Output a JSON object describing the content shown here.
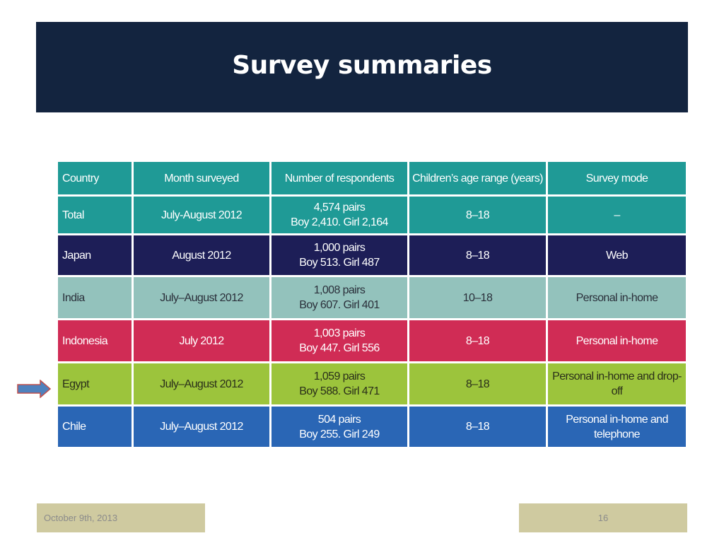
{
  "slide": {
    "title": "Survey summaries",
    "footer_date": "October 9th, 2013",
    "page_number": "16"
  },
  "table": {
    "headers": [
      "Country",
      "Month surveyed",
      "Number of respondents",
      "Children’s age range (years)",
      "Survey mode"
    ],
    "rows": [
      {
        "country": "Total",
        "month": "July-August 2012",
        "respondents_line1": "4,574 pairs",
        "respondents_line2": "Boy 2,410. Girl 2,164",
        "age_range": "8–18",
        "mode": "–",
        "color": "#1f9a96"
      },
      {
        "country": "Japan",
        "month": "August 2012",
        "respondents_line1": "1,000 pairs",
        "respondents_line2": "Boy 513. Girl 487",
        "age_range": "8–18",
        "mode": "Web",
        "color": "#1d1e57"
      },
      {
        "country": "India",
        "month": "July–August 2012",
        "respondents_line1": "1,008 pairs",
        "respondents_line2": "Boy 607. Girl 401",
        "age_range": "10–18",
        "mode": "Personal in-home",
        "color": "#93c2bc"
      },
      {
        "country": "Indonesia",
        "month": "July 2012",
        "respondents_line1": "1,003 pairs",
        "respondents_line2": "Boy 447. Girl 556",
        "age_range": "8–18",
        "mode": "Personal in-home",
        "color": "#d02c55"
      },
      {
        "country": "Egypt",
        "month": "July–August 2012",
        "respondents_line1": "1,059 pairs",
        "respondents_line2": "Boy 588. Girl 471",
        "age_range": "8–18",
        "mode": "Personal in-home and drop-off",
        "color": "#9cc43c"
      },
      {
        "country": "Chile",
        "month": "July–August 2012",
        "respondents_line1": "504 pairs",
        "respondents_line2": "Boy 255. Girl 249",
        "age_range": "8–18",
        "mode": "Personal in-home and telephone",
        "color": "#2a66b5"
      }
    ]
  },
  "pointer": {
    "icon": "right-arrow-icon",
    "target_row": "Egypt",
    "color": "#4f81bd"
  }
}
